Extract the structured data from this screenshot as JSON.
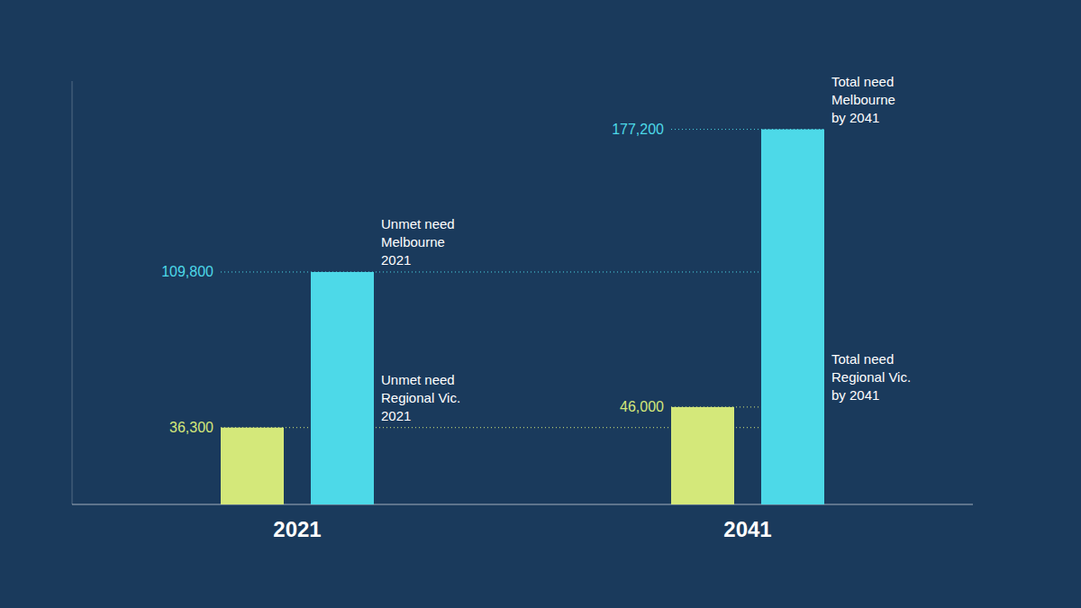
{
  "chart_data": {
    "type": "bar",
    "categories": [
      "2021",
      "2041"
    ],
    "series": [
      {
        "color": "#d4e87a",
        "values": [
          36300,
          46000
        ],
        "value_labels": [
          "36,300",
          "46,000"
        ],
        "labels": [
          "Unmet need\nRegional Vic.\n2021",
          "Total need\nRegional Vic.\nby 2041"
        ]
      },
      {
        "color": "#4dd9e8",
        "values": [
          109800,
          177200
        ],
        "value_labels": [
          "109,800",
          "177,200"
        ],
        "labels": [
          "Unmet need\nMelbourne\n2021",
          "Total need\nMelbourne\nby 2041"
        ]
      }
    ],
    "ylim": [
      0,
      200000
    ],
    "data_labels": true,
    "tick_labels": "x",
    "grid": false
  }
}
